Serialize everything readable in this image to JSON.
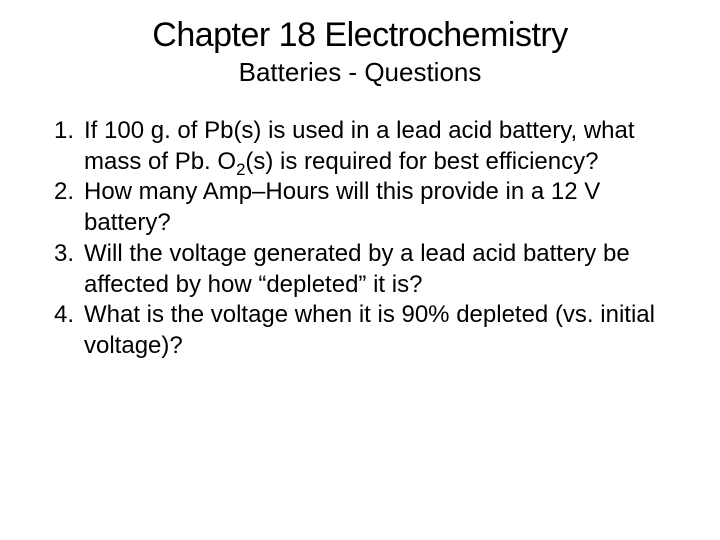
{
  "title_fontsize": 34,
  "subtitle_fontsize": 26,
  "body_fontsize": 24,
  "text_color": "#000000",
  "background_color": "#ffffff",
  "font_family": "Verdana, Tahoma, Geneva, sans-serif",
  "header": {
    "title": "Chapter 18 Electrochemistry",
    "subtitle": "Batteries - Questions"
  },
  "questions": [
    {
      "pre": "If 100 g. of Pb(s) is used in a lead acid battery, what mass of Pb. O",
      "sub": "2",
      "post": "(s) is required for best efficiency?"
    },
    {
      "pre": "How many Amp–Hours will this provide in a 12 V battery?",
      "sub": "",
      "post": ""
    },
    {
      "pre": "Will the voltage generated by a lead acid battery be affected by how “depleted” it is?",
      "sub": "",
      "post": ""
    },
    {
      "pre": "What is the voltage when it is 90% depleted (vs. initial voltage)?",
      "sub": "",
      "post": ""
    }
  ]
}
